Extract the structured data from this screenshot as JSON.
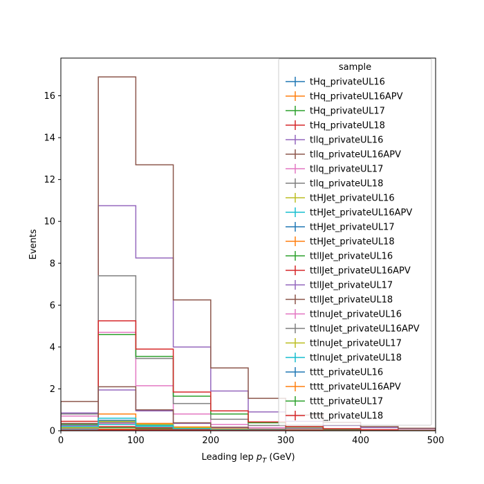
{
  "chart_data": {
    "type": "histogram-step",
    "xlabel_main": "Leading lep ",
    "xlabel_math": "p",
    "xlabel_sub": "T",
    "xlabel_unit": " (GeV)",
    "ylabel": "Events",
    "xlim": [
      0,
      500
    ],
    "ylim": [
      0,
      17.8
    ],
    "xticks": [
      0,
      100,
      200,
      300,
      400,
      500
    ],
    "yticks": [
      0,
      2,
      4,
      6,
      8,
      10,
      12,
      14,
      16
    ],
    "bin_edges": [
      0,
      50,
      100,
      150,
      200,
      250,
      300,
      350,
      400,
      450,
      500
    ],
    "legend_title": "sample",
    "legend_position": "top-right",
    "series": [
      {
        "name": "tHq_privateUL16",
        "color": "#1f77b4",
        "values": [
          0.05,
          0.08,
          0.05,
          0.03,
          0.02,
          0.01,
          0.01,
          0.0,
          0.0,
          0.0
        ]
      },
      {
        "name": "tHq_privateUL16APV",
        "color": "#ff7f0e",
        "values": [
          0.04,
          0.07,
          0.04,
          0.03,
          0.02,
          0.01,
          0.0,
          0.0,
          0.0,
          0.0
        ]
      },
      {
        "name": "tHq_privateUL17",
        "color": "#2ca02c",
        "values": [
          0.09,
          0.15,
          0.1,
          0.06,
          0.03,
          0.02,
          0.01,
          0.01,
          0.0,
          0.0
        ]
      },
      {
        "name": "tHq_privateUL18",
        "color": "#d62728",
        "values": [
          0.12,
          0.2,
          0.14,
          0.08,
          0.04,
          0.02,
          0.01,
          0.01,
          0.0,
          0.0
        ]
      },
      {
        "name": "tllq_privateUL16",
        "color": "#9467bd",
        "values": [
          0.85,
          10.75,
          8.25,
          4.0,
          1.9,
          0.9,
          0.45,
          0.25,
          0.15,
          0.1
        ]
      },
      {
        "name": "tllq_privateUL16APV",
        "color": "#8c564b",
        "values": [
          1.4,
          16.9,
          12.7,
          6.25,
          3.0,
          1.55,
          0.75,
          0.4,
          0.2,
          0.12
        ]
      },
      {
        "name": "tllq_privateUL17",
        "color": "#e377c2",
        "values": [
          0.7,
          4.7,
          2.15,
          0.8,
          0.3,
          0.15,
          0.07,
          0.04,
          0.02,
          0.01
        ]
      },
      {
        "name": "tllq_privateUL18",
        "color": "#7f7f7f",
        "values": [
          0.8,
          7.4,
          3.45,
          1.3,
          0.55,
          0.25,
          0.12,
          0.06,
          0.03,
          0.02
        ]
      },
      {
        "name": "ttHJet_privateUL16",
        "color": "#bcbd22",
        "values": [
          0.08,
          0.32,
          0.22,
          0.12,
          0.07,
          0.04,
          0.02,
          0.01,
          0.01,
          0.0
        ]
      },
      {
        "name": "ttHJet_privateUL16APV",
        "color": "#17becf",
        "values": [
          0.07,
          0.3,
          0.2,
          0.11,
          0.06,
          0.03,
          0.02,
          0.01,
          0.0,
          0.0
        ]
      },
      {
        "name": "ttHJet_privateUL17",
        "color": "#1f77b4",
        "values": [
          0.15,
          0.5,
          0.3,
          0.15,
          0.08,
          0.04,
          0.02,
          0.01,
          0.01,
          0.0
        ]
      },
      {
        "name": "ttHJet_privateUL18",
        "color": "#ff7f0e",
        "values": [
          0.18,
          0.8,
          0.35,
          0.18,
          0.09,
          0.05,
          0.03,
          0.01,
          0.01,
          0.0
        ]
      },
      {
        "name": "ttllJet_privateUL16",
        "color": "#2ca02c",
        "values": [
          0.3,
          4.6,
          3.55,
          1.65,
          0.8,
          0.38,
          0.18,
          0.08,
          0.04,
          0.02
        ]
      },
      {
        "name": "ttllJet_privateUL16APV",
        "color": "#d62728",
        "values": [
          0.45,
          5.25,
          3.9,
          1.85,
          0.95,
          0.42,
          0.2,
          0.1,
          0.05,
          0.02
        ]
      },
      {
        "name": "ttllJet_privateUL17",
        "color": "#9467bd",
        "values": [
          0.25,
          1.95,
          0.95,
          0.35,
          0.15,
          0.07,
          0.03,
          0.02,
          0.01,
          0.0
        ]
      },
      {
        "name": "ttllJet_privateUL18",
        "color": "#8c564b",
        "values": [
          0.35,
          2.1,
          1.0,
          0.38,
          0.17,
          0.08,
          0.04,
          0.02,
          0.01,
          0.0
        ]
      },
      {
        "name": "ttlnuJet_privateUL16",
        "color": "#e377c2",
        "values": [
          0.1,
          0.35,
          0.25,
          0.12,
          0.06,
          0.03,
          0.01,
          0.01,
          0.0,
          0.0
        ]
      },
      {
        "name": "ttlnuJet_privateUL16APV",
        "color": "#7f7f7f",
        "values": [
          0.12,
          0.4,
          0.28,
          0.13,
          0.07,
          0.03,
          0.02,
          0.01,
          0.0,
          0.0
        ]
      },
      {
        "name": "ttlnuJet_privateUL17",
        "color": "#bcbd22",
        "values": [
          0.14,
          0.45,
          0.3,
          0.14,
          0.07,
          0.03,
          0.02,
          0.01,
          0.0,
          0.0
        ]
      },
      {
        "name": "ttlnuJet_privateUL18",
        "color": "#17becf",
        "values": [
          0.2,
          0.6,
          0.25,
          0.1,
          0.05,
          0.02,
          0.01,
          0.0,
          0.0,
          0.0
        ]
      },
      {
        "name": "tttt_privateUL16",
        "color": "#1f77b4",
        "values": [
          0.01,
          0.02,
          0.02,
          0.02,
          0.01,
          0.01,
          0.01,
          0.0,
          0.0,
          0.0
        ]
      },
      {
        "name": "tttt_privateUL16APV",
        "color": "#ff7f0e",
        "values": [
          0.01,
          0.02,
          0.02,
          0.02,
          0.01,
          0.01,
          0.01,
          0.0,
          0.0,
          0.0
        ]
      },
      {
        "name": "tttt_privateUL17",
        "color": "#2ca02c",
        "values": [
          0.02,
          0.03,
          0.03,
          0.02,
          0.02,
          0.01,
          0.01,
          0.0,
          0.0,
          0.0
        ]
      },
      {
        "name": "tttt_privateUL18",
        "color": "#d62728",
        "values": [
          0.02,
          0.04,
          0.04,
          0.03,
          0.02,
          0.01,
          0.01,
          0.0,
          0.0,
          0.0
        ]
      }
    ]
  }
}
